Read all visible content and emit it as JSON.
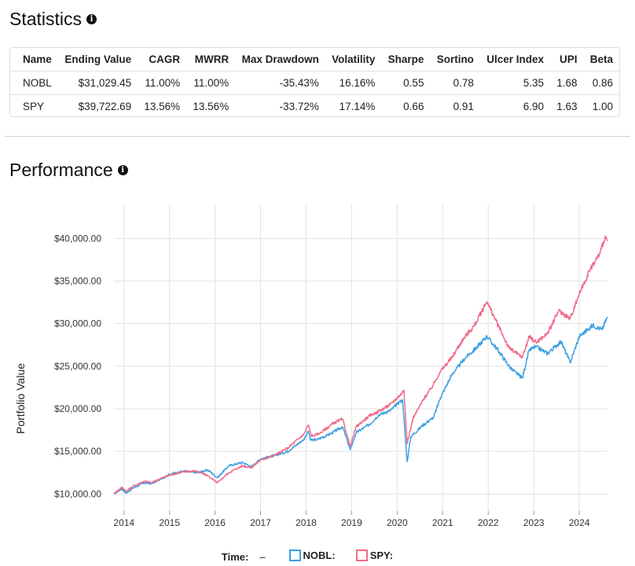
{
  "statistics": {
    "title": "Statistics",
    "columns": [
      "Name",
      "Ending Value",
      "CAGR",
      "MWRR",
      "Max Drawdown",
      "Volatility",
      "Sharpe",
      "Sortino",
      "Ulcer Index",
      "UPI",
      "Beta"
    ],
    "rows": [
      [
        "NOBL",
        "$31,029.45",
        "11.00%",
        "11.00%",
        "-35.43%",
        "16.16%",
        "0.55",
        "0.78",
        "5.35",
        "1.68",
        "0.86"
      ],
      [
        "SPY",
        "$39,722.69",
        "13.56%",
        "13.56%",
        "-33.72%",
        "17.14%",
        "0.66",
        "0.91",
        "6.90",
        "1.63",
        "1.00"
      ]
    ]
  },
  "performance": {
    "title": "Performance",
    "legend": {
      "time_label": "Time:",
      "time_value": "–"
    }
  },
  "chart_data": {
    "type": "line",
    "ylabel": "Portfolio Value",
    "xlabel": "",
    "xlim": [
      2013.78,
      2024.62
    ],
    "ylim": [
      8000,
      44000
    ],
    "y_ticks": [
      10000,
      15000,
      20000,
      25000,
      30000,
      35000,
      40000
    ],
    "y_tick_labels": [
      "$10,000.00",
      "$15,000.00",
      "$20,000.00",
      "$25,000.00",
      "$30,000.00",
      "$35,000.00",
      "$40,000.00"
    ],
    "x_ticks": [
      2014,
      2015,
      2016,
      2017,
      2018,
      2019,
      2020,
      2021,
      2022,
      2023,
      2024
    ],
    "x_tick_labels": [
      "2014",
      "2015",
      "2016",
      "2017",
      "2018",
      "2019",
      "2020",
      "2021",
      "2022",
      "2023",
      "2024"
    ],
    "grid": true,
    "legend_position": "bottom",
    "series": [
      {
        "name": "NOBL:",
        "color": "#3d9fe3",
        "points": [
          [
            2013.78,
            10000
          ],
          [
            2013.95,
            10600
          ],
          [
            2014.05,
            10100
          ],
          [
            2014.2,
            10700
          ],
          [
            2014.45,
            11300
          ],
          [
            2014.6,
            11200
          ],
          [
            2014.8,
            11700
          ],
          [
            2015.0,
            12300
          ],
          [
            2015.3,
            12700
          ],
          [
            2015.6,
            12500
          ],
          [
            2015.85,
            12800
          ],
          [
            2016.05,
            11900
          ],
          [
            2016.3,
            13300
          ],
          [
            2016.6,
            13700
          ],
          [
            2016.8,
            13200
          ],
          [
            2017.0,
            14100
          ],
          [
            2017.3,
            14500
          ],
          [
            2017.6,
            15000
          ],
          [
            2017.95,
            16400
          ],
          [
            2018.05,
            17400
          ],
          [
            2018.1,
            16300
          ],
          [
            2018.25,
            16400
          ],
          [
            2018.55,
            17100
          ],
          [
            2018.8,
            17900
          ],
          [
            2018.97,
            15200
          ],
          [
            2019.1,
            17200
          ],
          [
            2019.4,
            18200
          ],
          [
            2019.6,
            19300
          ],
          [
            2019.85,
            19800
          ],
          [
            2020.05,
            20800
          ],
          [
            2020.12,
            21000
          ],
          [
            2020.18,
            16600
          ],
          [
            2020.22,
            13800
          ],
          [
            2020.3,
            16700
          ],
          [
            2020.55,
            18000
          ],
          [
            2020.8,
            19000
          ],
          [
            2020.95,
            21300
          ],
          [
            2021.2,
            24000
          ],
          [
            2021.5,
            26000
          ],
          [
            2021.75,
            27200
          ],
          [
            2021.97,
            28500
          ],
          [
            2022.2,
            27000
          ],
          [
            2022.5,
            24700
          ],
          [
            2022.75,
            23600
          ],
          [
            2022.9,
            26900
          ],
          [
            2023.05,
            27300
          ],
          [
            2023.3,
            26500
          ],
          [
            2023.6,
            27900
          ],
          [
            2023.8,
            25400
          ],
          [
            2024.0,
            28500
          ],
          [
            2024.3,
            29800
          ],
          [
            2024.5,
            29300
          ],
          [
            2024.62,
            30800
          ]
        ]
      },
      {
        "name": "SPY:",
        "color": "#f06a87",
        "points": [
          [
            2013.78,
            10000
          ],
          [
            2013.95,
            10800
          ],
          [
            2014.05,
            10300
          ],
          [
            2014.2,
            10900
          ],
          [
            2014.45,
            11500
          ],
          [
            2014.6,
            11300
          ],
          [
            2014.8,
            11800
          ],
          [
            2015.0,
            12200
          ],
          [
            2015.3,
            12600
          ],
          [
            2015.6,
            12700
          ],
          [
            2015.85,
            12100
          ],
          [
            2016.05,
            11300
          ],
          [
            2016.3,
            12500
          ],
          [
            2016.6,
            13300
          ],
          [
            2016.8,
            13100
          ],
          [
            2017.0,
            14000
          ],
          [
            2017.3,
            14500
          ],
          [
            2017.6,
            15400
          ],
          [
            2017.95,
            17000
          ],
          [
            2018.05,
            18100
          ],
          [
            2018.12,
            16800
          ],
          [
            2018.3,
            17100
          ],
          [
            2018.6,
            18300
          ],
          [
            2018.8,
            18800
          ],
          [
            2018.97,
            15600
          ],
          [
            2019.1,
            17900
          ],
          [
            2019.4,
            19200
          ],
          [
            2019.6,
            19700
          ],
          [
            2019.85,
            20500
          ],
          [
            2020.1,
            21800
          ],
          [
            2020.15,
            22200
          ],
          [
            2020.22,
            15900
          ],
          [
            2020.35,
            18900
          ],
          [
            2020.6,
            21300
          ],
          [
            2020.75,
            22400
          ],
          [
            2020.95,
            24400
          ],
          [
            2021.2,
            26000
          ],
          [
            2021.45,
            28200
          ],
          [
            2021.7,
            29800
          ],
          [
            2021.97,
            32600
          ],
          [
            2022.2,
            30000
          ],
          [
            2022.45,
            27200
          ],
          [
            2022.75,
            26000
          ],
          [
            2022.9,
            28500
          ],
          [
            2023.05,
            27800
          ],
          [
            2023.3,
            28800
          ],
          [
            2023.55,
            31500
          ],
          [
            2023.8,
            30600
          ],
          [
            2024.0,
            33500
          ],
          [
            2024.25,
            36500
          ],
          [
            2024.45,
            38200
          ],
          [
            2024.57,
            40300
          ],
          [
            2024.62,
            39700
          ]
        ]
      }
    ]
  }
}
